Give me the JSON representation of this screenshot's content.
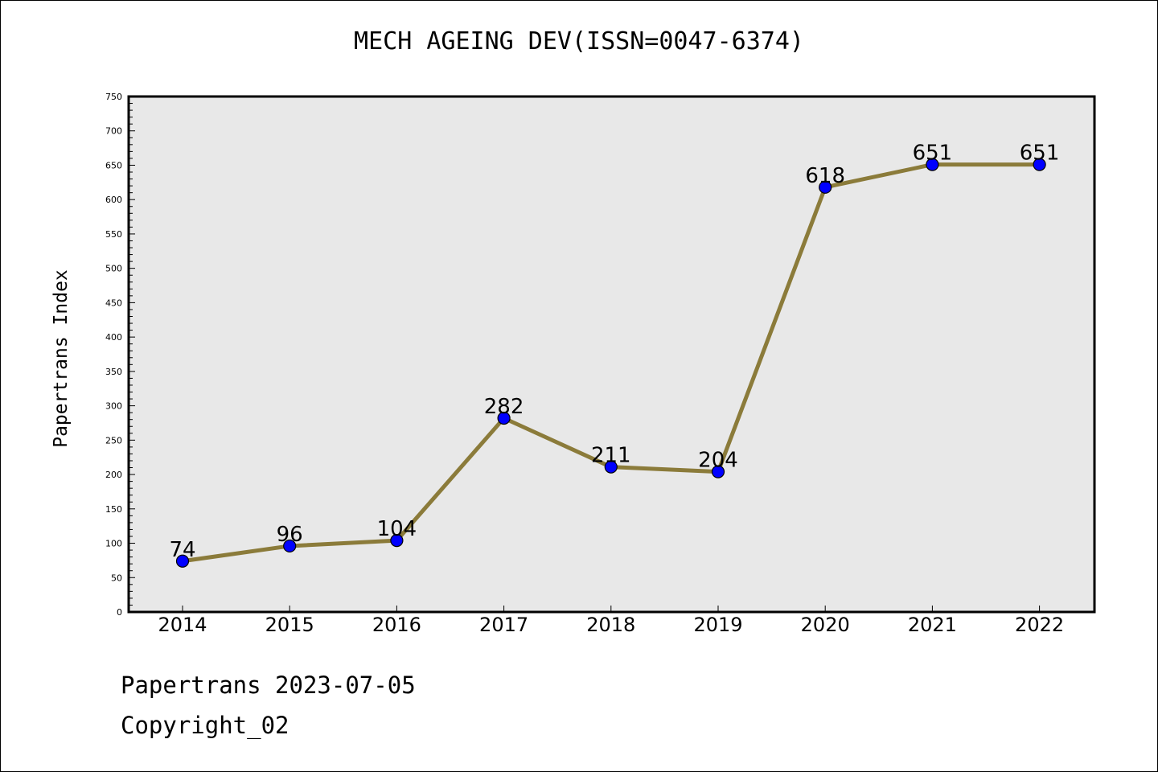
{
  "chart_data": {
    "type": "line",
    "title": "MECH AGEING DEV(ISSN=0047-6374)",
    "xlabel": "",
    "ylabel": "Papertrans Index",
    "categories": [
      "2014",
      "2015",
      "2016",
      "2017",
      "2018",
      "2019",
      "2020",
      "2021",
      "2022"
    ],
    "values": [
      74,
      96,
      104,
      282,
      211,
      204,
      618,
      651,
      651
    ],
    "data_labels": [
      "74",
      "96",
      "104",
      "282",
      "211",
      "204",
      "618",
      "651",
      "651"
    ],
    "ylim": [
      0,
      750
    ],
    "yticks": [
      0,
      50,
      100,
      150,
      200,
      250,
      300,
      350,
      400,
      450,
      500,
      550,
      600,
      650,
      700,
      750
    ],
    "ytick_labels": [
      "0",
      "50",
      "100",
      "150",
      "200",
      "250",
      "300",
      "350",
      "400",
      "450",
      "500",
      "550",
      "600",
      "650",
      "700",
      "750"
    ],
    "grid": false,
    "line_color": "#8b7b3a",
    "marker_color": "#0000ff",
    "plot_background": "#e8e8e8"
  },
  "footer": {
    "date_line": "Papertrans 2023-07-05",
    "copyright_line": "Copyright_02"
  }
}
